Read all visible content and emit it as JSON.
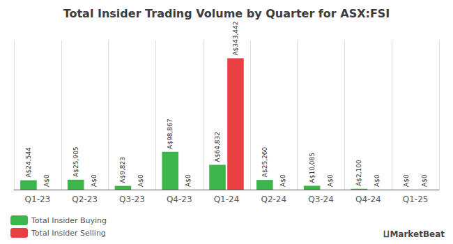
{
  "chart_data": {
    "type": "bar",
    "title": "Total Insider Trading Volume by Quarter for ASX:FSI",
    "categories": [
      "Q1-23",
      "Q2-23",
      "Q3-23",
      "Q4-23",
      "Q1-24",
      "Q2-24",
      "Q3-24",
      "Q4-24",
      "Q1-25"
    ],
    "series": [
      {
        "name": "Total Insider Buying",
        "color": "#3cb54a",
        "values": [
          24544,
          25905,
          9823,
          98867,
          64832,
          25260,
          10085,
          2100,
          0
        ],
        "value_labels": [
          "A$24,544",
          "A$25,905",
          "A$9,823",
          "A$98,867",
          "A$64,832",
          "A$25,260",
          "A$10,085",
          "A$2,100",
          "A$0"
        ]
      },
      {
        "name": "Total Insider Selling",
        "color": "#e84040",
        "values": [
          0,
          0,
          0,
          0,
          343442,
          0,
          0,
          0,
          0
        ],
        "value_labels": [
          "A$0",
          "A$0",
          "A$0",
          "A$0",
          "A$343,442",
          "A$0",
          "A$0",
          "A$0",
          "A$0"
        ]
      }
    ],
    "ylim": [
      0,
      390000
    ],
    "grid": true,
    "legend": "lower left",
    "data_labels": true,
    "tick_labels": "x",
    "annotations": [
      "⨿MarketBeat"
    ]
  }
}
